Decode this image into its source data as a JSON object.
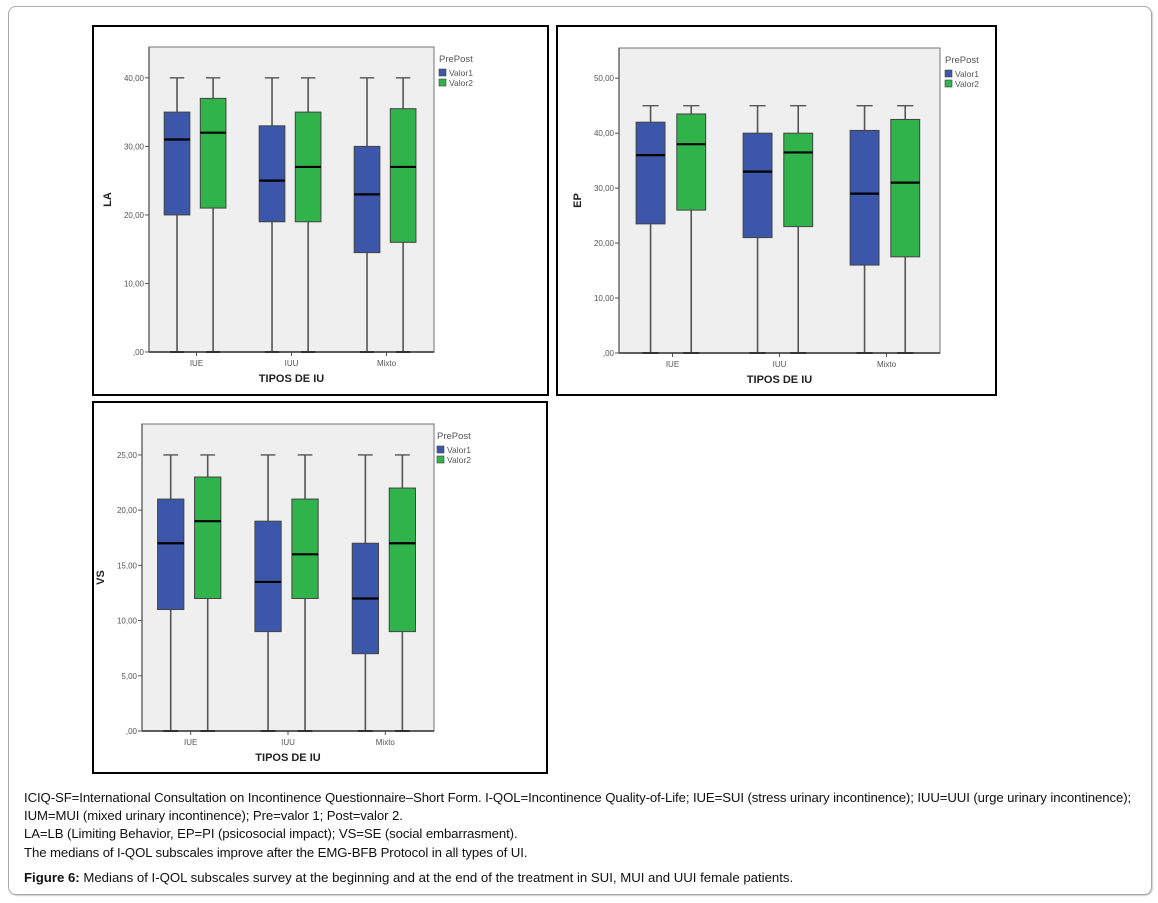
{
  "figure": {
    "label": "Figure 6:",
    "title": "Medians of I-QOL subscales survey at the beginning and at the end of the treatment in SUI, MUI and UUI female patients."
  },
  "caption_lines": [
    "ICIQ-SF=International Consultation on Incontinence Questionnaire–Short Form. I-QOL=Incontinence Quality-of-Life; IUE=SUI (stress urinary incontinence); IUU=UUI (urge urinary incontinence); IUM=MUI (mixed urinary incontinence); Pre=valor 1; Post=valor 2.",
    "LA=LB (Limiting Behavior, EP=PI (psicosocial impact); VS=SE (social embarrasment).",
    "The medians of I-QOL subscales improve after the EMG-BFB Protocol in all types of UI."
  ],
  "colors": {
    "valor1": "#3c57a9",
    "valor2": "#2fb34a",
    "plot_bg": "#efefef"
  },
  "chart_data": [
    {
      "type": "boxplot",
      "id": "LA",
      "ylabel": "LA",
      "xlabel": "TIPOS DE IU",
      "categories": [
        "IUE",
        "IUU",
        "Mixto"
      ],
      "ylim": [
        0,
        44.5
      ],
      "yticks": [
        0,
        10,
        20,
        30,
        40
      ],
      "ytick_labels": [
        ",00",
        "10,00",
        "20,00",
        "30,00",
        "40,00"
      ],
      "legend": {
        "title": "PrePost",
        "position": "top-right",
        "entries": [
          "Valor1",
          "Valor2"
        ]
      },
      "grid": false,
      "series": [
        {
          "name": "Valor1",
          "boxes": [
            {
              "min": 0,
              "q1": 20,
              "median": 31,
              "q3": 35,
              "max": 40
            },
            {
              "min": 0,
              "q1": 19,
              "median": 25,
              "q3": 33,
              "max": 40
            },
            {
              "min": 0,
              "q1": 14.5,
              "median": 23,
              "q3": 30,
              "max": 40
            }
          ]
        },
        {
          "name": "Valor2",
          "boxes": [
            {
              "min": 0,
              "q1": 21,
              "median": 32,
              "q3": 37,
              "max": 40
            },
            {
              "min": 0,
              "q1": 19,
              "median": 27,
              "q3": 35,
              "max": 40
            },
            {
              "min": 0,
              "q1": 16,
              "median": 27,
              "q3": 35.5,
              "max": 40
            }
          ]
        }
      ]
    },
    {
      "type": "boxplot",
      "id": "EP",
      "ylabel": "EP",
      "xlabel": "TIPOS DE IU",
      "categories": [
        "IUE",
        "IUU",
        "Mixto"
      ],
      "ylim": [
        0,
        55.5
      ],
      "yticks": [
        0,
        10,
        20,
        30,
        40,
        50
      ],
      "ytick_labels": [
        ",00",
        "10,00",
        "20,00",
        "30,00",
        "40,00",
        "50,00"
      ],
      "legend": {
        "title": "PrePost",
        "position": "top-right",
        "entries": [
          "Valor1",
          "Valor2"
        ]
      },
      "grid": false,
      "series": [
        {
          "name": "Valor1",
          "boxes": [
            {
              "min": 0,
              "q1": 23.5,
              "median": 36,
              "q3": 42,
              "max": 45
            },
            {
              "min": 0,
              "q1": 21,
              "median": 33,
              "q3": 40,
              "max": 45
            },
            {
              "min": 0,
              "q1": 16,
              "median": 29,
              "q3": 40.5,
              "max": 45
            }
          ]
        },
        {
          "name": "Valor2",
          "boxes": [
            {
              "min": 0,
              "q1": 26,
              "median": 38,
              "q3": 43.5,
              "max": 45
            },
            {
              "min": 0,
              "q1": 23,
              "median": 36.5,
              "q3": 40,
              "max": 45
            },
            {
              "min": 0,
              "q1": 17.5,
              "median": 31,
              "q3": 42.5,
              "max": 45
            }
          ]
        }
      ]
    },
    {
      "type": "boxplot",
      "id": "VS",
      "ylabel": "VS",
      "xlabel": "TIPOS DE IU",
      "categories": [
        "IUE",
        "IUU",
        "Mixto"
      ],
      "ylim": [
        0,
        27.8
      ],
      "yticks": [
        0,
        5,
        10,
        15,
        20,
        25
      ],
      "ytick_labels": [
        ",00",
        "5,00",
        "10,00",
        "15,00",
        "20,00",
        "25,00"
      ],
      "legend": {
        "title": "PrePost",
        "position": "top-right",
        "entries": [
          "Valor1",
          "Valor2"
        ]
      },
      "grid": false,
      "series": [
        {
          "name": "Valor1",
          "boxes": [
            {
              "min": 0,
              "q1": 11,
              "median": 17,
              "q3": 21,
              "max": 25
            },
            {
              "min": 0,
              "q1": 9,
              "median": 13.5,
              "q3": 19,
              "max": 25
            },
            {
              "min": 0,
              "q1": 7,
              "median": 12,
              "q3": 17,
              "max": 25
            }
          ]
        },
        {
          "name": "Valor2",
          "boxes": [
            {
              "min": 0,
              "q1": 12,
              "median": 19,
              "q3": 23,
              "max": 25
            },
            {
              "min": 0,
              "q1": 12,
              "median": 16,
              "q3": 21,
              "max": 25
            },
            {
              "min": 0,
              "q1": 9,
              "median": 17,
              "q3": 22,
              "max": 25
            }
          ]
        }
      ]
    }
  ]
}
